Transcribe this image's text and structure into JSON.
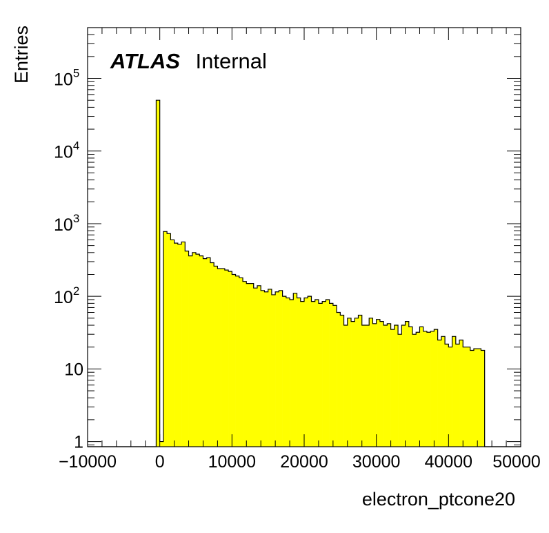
{
  "chart_data": {
    "type": "histogram",
    "xlabel": "electron_ptcone20",
    "ylabel": "Entries",
    "xlim": [
      -10000,
      50000
    ],
    "ylim": [
      0.85,
      500000
    ],
    "log_y": true,
    "grid": false,
    "fill_color": "#ffff00",
    "line_color": "#000000",
    "annotation": {
      "bold": "ATLAS",
      "normal": "Internal"
    },
    "x_tick_labels": [
      "−10000",
      "0",
      "10000",
      "20000",
      "30000",
      "40000",
      "50000"
    ],
    "x_tick_values": [
      -10000,
      0,
      10000,
      20000,
      30000,
      40000,
      50000
    ],
    "y_ticks": [
      {
        "value": 1,
        "label": "1",
        "exp": ""
      },
      {
        "value": 10,
        "label": "10",
        "exp": ""
      },
      {
        "value": 100,
        "label": "10",
        "exp": "2"
      },
      {
        "value": 1000,
        "label": "10",
        "exp": "3"
      },
      {
        "value": 10000,
        "label": "10",
        "exp": "4"
      },
      {
        "value": 100000,
        "label": "10",
        "exp": "5"
      }
    ],
    "bins": {
      "edges_start": -10000,
      "bin_width": 500,
      "count": 120,
      "nonzero": [
        {
          "index": 19,
          "value": 50000
        },
        {
          "index": 20,
          "value": 1
        }
      ],
      "tail_start_index": 21,
      "tail_values": [
        780,
        730,
        600,
        540,
        520,
        560,
        420,
        360,
        400,
        380,
        360,
        330,
        340,
        290,
        260,
        240,
        240,
        230,
        220,
        200,
        190,
        180,
        160,
        150,
        150,
        130,
        140,
        120,
        115,
        125,
        105,
        115,
        120,
        100,
        95,
        90,
        110,
        95,
        85,
        95,
        100,
        85,
        90,
        80,
        85,
        90,
        80,
        75,
        60,
        55,
        40,
        50,
        45,
        50,
        55,
        40,
        40,
        50,
        42,
        48,
        45,
        40,
        42,
        35,
        40,
        30,
        40,
        45,
        38,
        30,
        32,
        38,
        33,
        32,
        33,
        35,
        25,
        28,
        22,
        20,
        28,
        22,
        25,
        20,
        20,
        18,
        19,
        19,
        18
      ]
    }
  }
}
